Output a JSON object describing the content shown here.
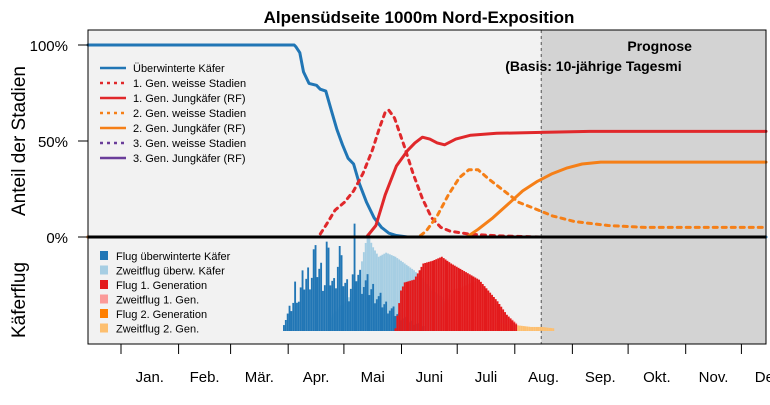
{
  "chart_data": {
    "type": "line",
    "title": "Alpensüdseite 1000m Nord-Exposition",
    "prognose": {
      "title": "Prognose",
      "subtitle": "(Basis: 10-jährige Tagesmi",
      "start_doy": 244
    },
    "top_panel": {
      "ylabel": "Anteil der Stadien",
      "yticks": [
        "0%",
        "50%",
        "100%"
      ],
      "ylim": [
        0,
        1.0
      ]
    },
    "bottom_panel": {
      "ylabel": "Käferflug"
    },
    "xlim": [
      0,
      365
    ],
    "months": [
      "Jan.",
      "Feb.",
      "Mär.",
      "Apr.",
      "Mai",
      "Juni",
      "Juli",
      "Aug.",
      "Sep.",
      "Okt.",
      "Nov.",
      "Dez."
    ],
    "month_starts": [
      0,
      31,
      59,
      90,
      120,
      151,
      181,
      212,
      243,
      273,
      304,
      334,
      365
    ],
    "series": [
      {
        "name": "Überwinterte Käfer",
        "color": "#2176b5",
        "dash": "solid",
        "points": [
          [
            0,
            1.0
          ],
          [
            111,
            1.0
          ],
          [
            112,
            0.99
          ],
          [
            114,
            0.96
          ],
          [
            116,
            0.86
          ],
          [
            119,
            0.8
          ],
          [
            123,
            0.79
          ],
          [
            125,
            0.77
          ],
          [
            128,
            0.76
          ],
          [
            131,
            0.66
          ],
          [
            134,
            0.56
          ],
          [
            137,
            0.48
          ],
          [
            140,
            0.41
          ],
          [
            143,
            0.38
          ],
          [
            146,
            0.28
          ],
          [
            150,
            0.18
          ],
          [
            154,
            0.1
          ],
          [
            158,
            0.05
          ],
          [
            162,
            0.02
          ],
          [
            166,
            0.008
          ],
          [
            172,
            0.0
          ],
          [
            365,
            0.0
          ]
        ]
      },
      {
        "name": "1. Gen. weisse Stadien",
        "color": "#e0282b",
        "dash": "dotted",
        "points": [
          [
            0,
            0
          ],
          [
            124,
            0
          ],
          [
            128,
            0.06
          ],
          [
            133,
            0.14
          ],
          [
            138,
            0.18
          ],
          [
            143,
            0.24
          ],
          [
            148,
            0.33
          ],
          [
            153,
            0.45
          ],
          [
            157,
            0.57
          ],
          [
            160,
            0.65
          ],
          [
            162,
            0.66
          ],
          [
            165,
            0.62
          ],
          [
            170,
            0.48
          ],
          [
            175,
            0.33
          ],
          [
            180,
            0.2
          ],
          [
            185,
            0.1
          ],
          [
            190,
            0.05
          ],
          [
            195,
            0.03
          ],
          [
            205,
            0.015
          ],
          [
            220,
            0.006
          ],
          [
            244,
            0.0
          ],
          [
            365,
            0.0
          ]
        ]
      },
      {
        "name": "1. Gen. Jungkäfer (RF)",
        "color": "#e0282b",
        "dash": "solid",
        "points": [
          [
            0,
            0
          ],
          [
            150,
            0
          ],
          [
            155,
            0.06
          ],
          [
            160,
            0.22
          ],
          [
            166,
            0.37
          ],
          [
            172,
            0.45
          ],
          [
            176,
            0.49
          ],
          [
            180,
            0.52
          ],
          [
            184,
            0.51
          ],
          [
            188,
            0.49
          ],
          [
            192,
            0.48
          ],
          [
            198,
            0.51
          ],
          [
            206,
            0.53
          ],
          [
            220,
            0.54
          ],
          [
            244,
            0.545
          ],
          [
            270,
            0.55
          ],
          [
            365,
            0.55
          ]
        ]
      },
      {
        "name": "2. Gen. weisse Stadien",
        "color": "#f57f17",
        "dash": "dotted",
        "points": [
          [
            0,
            0
          ],
          [
            178,
            0
          ],
          [
            182,
            0.03
          ],
          [
            188,
            0.11
          ],
          [
            194,
            0.22
          ],
          [
            200,
            0.31
          ],
          [
            205,
            0.35
          ],
          [
            210,
            0.35
          ],
          [
            216,
            0.3
          ],
          [
            224,
            0.24
          ],
          [
            232,
            0.18
          ],
          [
            240,
            0.15
          ],
          [
            250,
            0.11
          ],
          [
            262,
            0.08
          ],
          [
            280,
            0.06
          ],
          [
            300,
            0.05
          ],
          [
            365,
            0.05
          ]
        ]
      },
      {
        "name": "2. Gen. Jungkäfer (RF)",
        "color": "#f57f17",
        "dash": "solid",
        "points": [
          [
            0,
            0
          ],
          [
            204,
            0
          ],
          [
            210,
            0.04
          ],
          [
            218,
            0.1
          ],
          [
            226,
            0.17
          ],
          [
            234,
            0.24
          ],
          [
            242,
            0.29
          ],
          [
            250,
            0.33
          ],
          [
            258,
            0.36
          ],
          [
            266,
            0.38
          ],
          [
            276,
            0.39
          ],
          [
            290,
            0.39
          ],
          [
            365,
            0.39
          ]
        ]
      },
      {
        "name": "3. Gen. weisse Stadien",
        "color": "#6a3d9a",
        "dash": "dotted",
        "points": [
          [
            0,
            0
          ],
          [
            365,
            0
          ]
        ]
      },
      {
        "name": "3. Gen. Jungkäfer (RF)",
        "color": "#6a3d9a",
        "dash": "solid",
        "points": [
          [
            0,
            0
          ],
          [
            365,
            0
          ]
        ]
      }
    ],
    "flight_series": [
      {
        "name": "Flug überwinterte Käfer",
        "color": "#2176b5",
        "peaks": [
          [
            105,
            0.08
          ],
          [
            110,
            0.28
          ],
          [
            111,
            0.42
          ],
          [
            112,
            0.38
          ],
          [
            113,
            0.32
          ],
          [
            115,
            0.48
          ],
          [
            117,
            0.52
          ],
          [
            120,
            0.58
          ],
          [
            121,
            0.75
          ],
          [
            122,
            0.68
          ],
          [
            124,
            0.62
          ],
          [
            127,
            0.5
          ],
          [
            128,
            0.82
          ],
          [
            129,
            0.66
          ],
          [
            130,
            0.55
          ],
          [
            132,
            0.45
          ],
          [
            134,
            0.7
          ],
          [
            135,
            0.78
          ],
          [
            136,
            0.6
          ],
          [
            138,
            0.48
          ],
          [
            140,
            0.4
          ],
          [
            142,
            0.52
          ],
          [
            143,
            0.85
          ],
          [
            144,
            0.6
          ],
          [
            146,
            0.52
          ],
          [
            148,
            0.48
          ],
          [
            150,
            0.45
          ],
          [
            153,
            0.4
          ],
          [
            156,
            0.32
          ],
          [
            160,
            0.25
          ],
          [
            165,
            0.18
          ],
          [
            170,
            0.12
          ],
          [
            175,
            0.08
          ],
          [
            180,
            0.05
          ]
        ]
      },
      {
        "name": "Zweitflug überw. Käfer",
        "color": "#a6cee3",
        "peaks": [
          [
            130,
            0.1
          ],
          [
            140,
            0.25
          ],
          [
            145,
            0.38
          ],
          [
            150,
            0.72
          ],
          [
            153,
            0.62
          ],
          [
            156,
            0.55
          ],
          [
            160,
            0.58
          ],
          [
            165,
            0.55
          ],
          [
            170,
            0.5
          ],
          [
            175,
            0.45
          ],
          [
            180,
            0.38
          ],
          [
            185,
            0.3
          ],
          [
            190,
            0.25
          ],
          [
            195,
            0.18
          ],
          [
            200,
            0.12
          ],
          [
            205,
            0.06
          ]
        ]
      },
      {
        "name": "Flug 1. Generation",
        "color": "#e31a1c",
        "peaks": [
          [
            165,
            0.02
          ],
          [
            168,
            0.3
          ],
          [
            170,
            0.36
          ],
          [
            175,
            0.38
          ],
          [
            178,
            0.45
          ],
          [
            180,
            0.5
          ],
          [
            185,
            0.52
          ],
          [
            190,
            0.55
          ],
          [
            195,
            0.5
          ],
          [
            200,
            0.46
          ],
          [
            205,
            0.42
          ],
          [
            210,
            0.38
          ],
          [
            215,
            0.3
          ],
          [
            220,
            0.22
          ],
          [
            225,
            0.12
          ],
          [
            230,
            0.05
          ]
        ]
      },
      {
        "name": "Zweitflug 1. Gen.",
        "color": "#fb9a99",
        "peaks": [
          [
            190,
            0.15
          ],
          [
            195,
            0.3
          ],
          [
            200,
            0.32
          ],
          [
            205,
            0.35
          ],
          [
            210,
            0.38
          ],
          [
            215,
            0.3
          ],
          [
            220,
            0.2
          ],
          [
            225,
            0.12
          ],
          [
            230,
            0.06
          ]
        ]
      },
      {
        "name": "Flug 2. Generation",
        "color": "#ff7f00",
        "peaks": []
      },
      {
        "name": "Zweitflug 2. Gen.",
        "color": "#fdbf6f",
        "peaks": [
          [
            220,
            0.06
          ],
          [
            226,
            0.05
          ],
          [
            232,
            0.04
          ],
          [
            238,
            0.03
          ],
          [
            244,
            0.03
          ],
          [
            250,
            0.02
          ]
        ]
      }
    ]
  }
}
